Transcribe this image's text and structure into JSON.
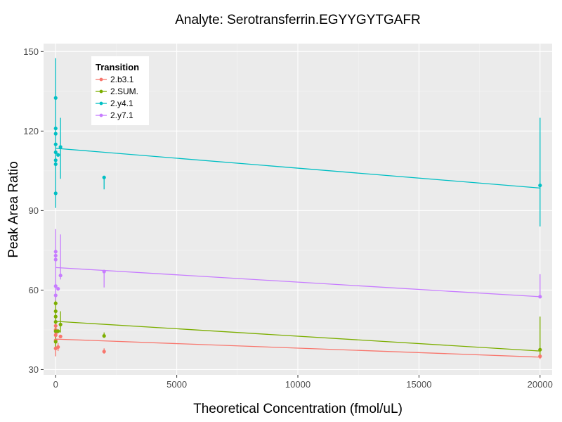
{
  "chart_data": {
    "type": "scatter",
    "title": "Analyte: Serotransferrin.EGYYGYTGAFR",
    "xlabel": "Theoretical Concentration (fmol/uL)",
    "ylabel": "Peak Area Ratio",
    "xlim": [
      -500,
      20500
    ],
    "ylim": [
      28,
      153
    ],
    "xticks": [
      0,
      5000,
      10000,
      15000,
      20000
    ],
    "yticks": [
      30,
      60,
      90,
      120,
      150
    ],
    "xtick_labels": [
      "0",
      "5000",
      "10000",
      "15000",
      "20000"
    ],
    "ytick_labels": [
      "30",
      "60",
      "90",
      "120",
      "150"
    ],
    "grid": true,
    "legend": {
      "title": "Transition",
      "position": "top-left"
    },
    "series": [
      {
        "name": "2.b3.1",
        "color": "#F8766D",
        "points": [
          {
            "x": 0,
            "y": 38
          },
          {
            "x": 0,
            "y": 41
          },
          {
            "x": 0,
            "y": 43
          },
          {
            "x": 0,
            "y": 45
          },
          {
            "x": 0,
            "y": 46.5
          },
          {
            "x": 20,
            "y": 44
          },
          {
            "x": 100,
            "y": 38.5
          },
          {
            "x": 200,
            "y": 42.5
          },
          {
            "x": 2000,
            "y": 36.8
          },
          {
            "x": 20000,
            "y": 35
          }
        ],
        "errorbars": [
          {
            "x": 0,
            "low": 35,
            "high": 48
          },
          {
            "x": 100,
            "low": 37,
            "high": 40
          },
          {
            "x": 2000,
            "low": 36,
            "high": 38
          },
          {
            "x": 20000,
            "low": 34,
            "high": 36
          }
        ],
        "trend": [
          {
            "x": 0,
            "y": 41.5
          },
          {
            "x": 20000,
            "y": 34.7
          }
        ]
      },
      {
        "name": "2.SUM.",
        "color": "#7CAE00",
        "points": [
          {
            "x": 0,
            "y": 40.5
          },
          {
            "x": 0,
            "y": 44.5
          },
          {
            "x": 0,
            "y": 48
          },
          {
            "x": 0,
            "y": 50
          },
          {
            "x": 0,
            "y": 52
          },
          {
            "x": 0,
            "y": 55
          },
          {
            "x": 100,
            "y": 44.5
          },
          {
            "x": 200,
            "y": 47
          },
          {
            "x": 2000,
            "y": 42.7
          },
          {
            "x": 20000,
            "y": 37.5
          }
        ],
        "errorbars": [
          {
            "x": 0,
            "low": 38,
            "high": 58
          },
          {
            "x": 200,
            "low": 44,
            "high": 52
          },
          {
            "x": 2000,
            "low": 42,
            "high": 44
          },
          {
            "x": 20000,
            "low": 35,
            "high": 50
          }
        ],
        "trend": [
          {
            "x": 0,
            "y": 48.2
          },
          {
            "x": 20000,
            "y": 37
          }
        ]
      },
      {
        "name": "2.y4.1",
        "color": "#00BFC4",
        "points": [
          {
            "x": 0,
            "y": 96.5
          },
          {
            "x": 0,
            "y": 107.5
          },
          {
            "x": 0,
            "y": 109
          },
          {
            "x": 0,
            "y": 112
          },
          {
            "x": 0,
            "y": 115
          },
          {
            "x": 0,
            "y": 119
          },
          {
            "x": 0,
            "y": 121
          },
          {
            "x": 0,
            "y": 132.5
          },
          {
            "x": 100,
            "y": 111
          },
          {
            "x": 200,
            "y": 114
          },
          {
            "x": 2000,
            "y": 102.5
          },
          {
            "x": 20000,
            "y": 99.5
          }
        ],
        "errorbars": [
          {
            "x": 0,
            "low": 91,
            "high": 147.5
          },
          {
            "x": 200,
            "low": 102,
            "high": 125
          },
          {
            "x": 2000,
            "low": 98,
            "high": 103
          },
          {
            "x": 20000,
            "low": 84,
            "high": 125
          }
        ],
        "trend": [
          {
            "x": 0,
            "y": 113.5
          },
          {
            "x": 20000,
            "y": 98.5
          }
        ]
      },
      {
        "name": "2.y7.1",
        "color": "#C77CFF",
        "points": [
          {
            "x": 0,
            "y": 58
          },
          {
            "x": 0,
            "y": 61.5
          },
          {
            "x": 0,
            "y": 71.5
          },
          {
            "x": 0,
            "y": 73
          },
          {
            "x": 0,
            "y": 74.5
          },
          {
            "x": 100,
            "y": 60.5
          },
          {
            "x": 200,
            "y": 65.5
          },
          {
            "x": 2000,
            "y": 67
          },
          {
            "x": 20000,
            "y": 57.5
          }
        ],
        "errorbars": [
          {
            "x": 0,
            "low": 56,
            "high": 83
          },
          {
            "x": 200,
            "low": 64,
            "high": 81
          },
          {
            "x": 2000,
            "low": 61,
            "high": 67.5
          },
          {
            "x": 20000,
            "low": 57,
            "high": 66
          }
        ],
        "trend": [
          {
            "x": 0,
            "y": 68.5
          },
          {
            "x": 20000,
            "y": 57.5
          }
        ]
      }
    ]
  }
}
